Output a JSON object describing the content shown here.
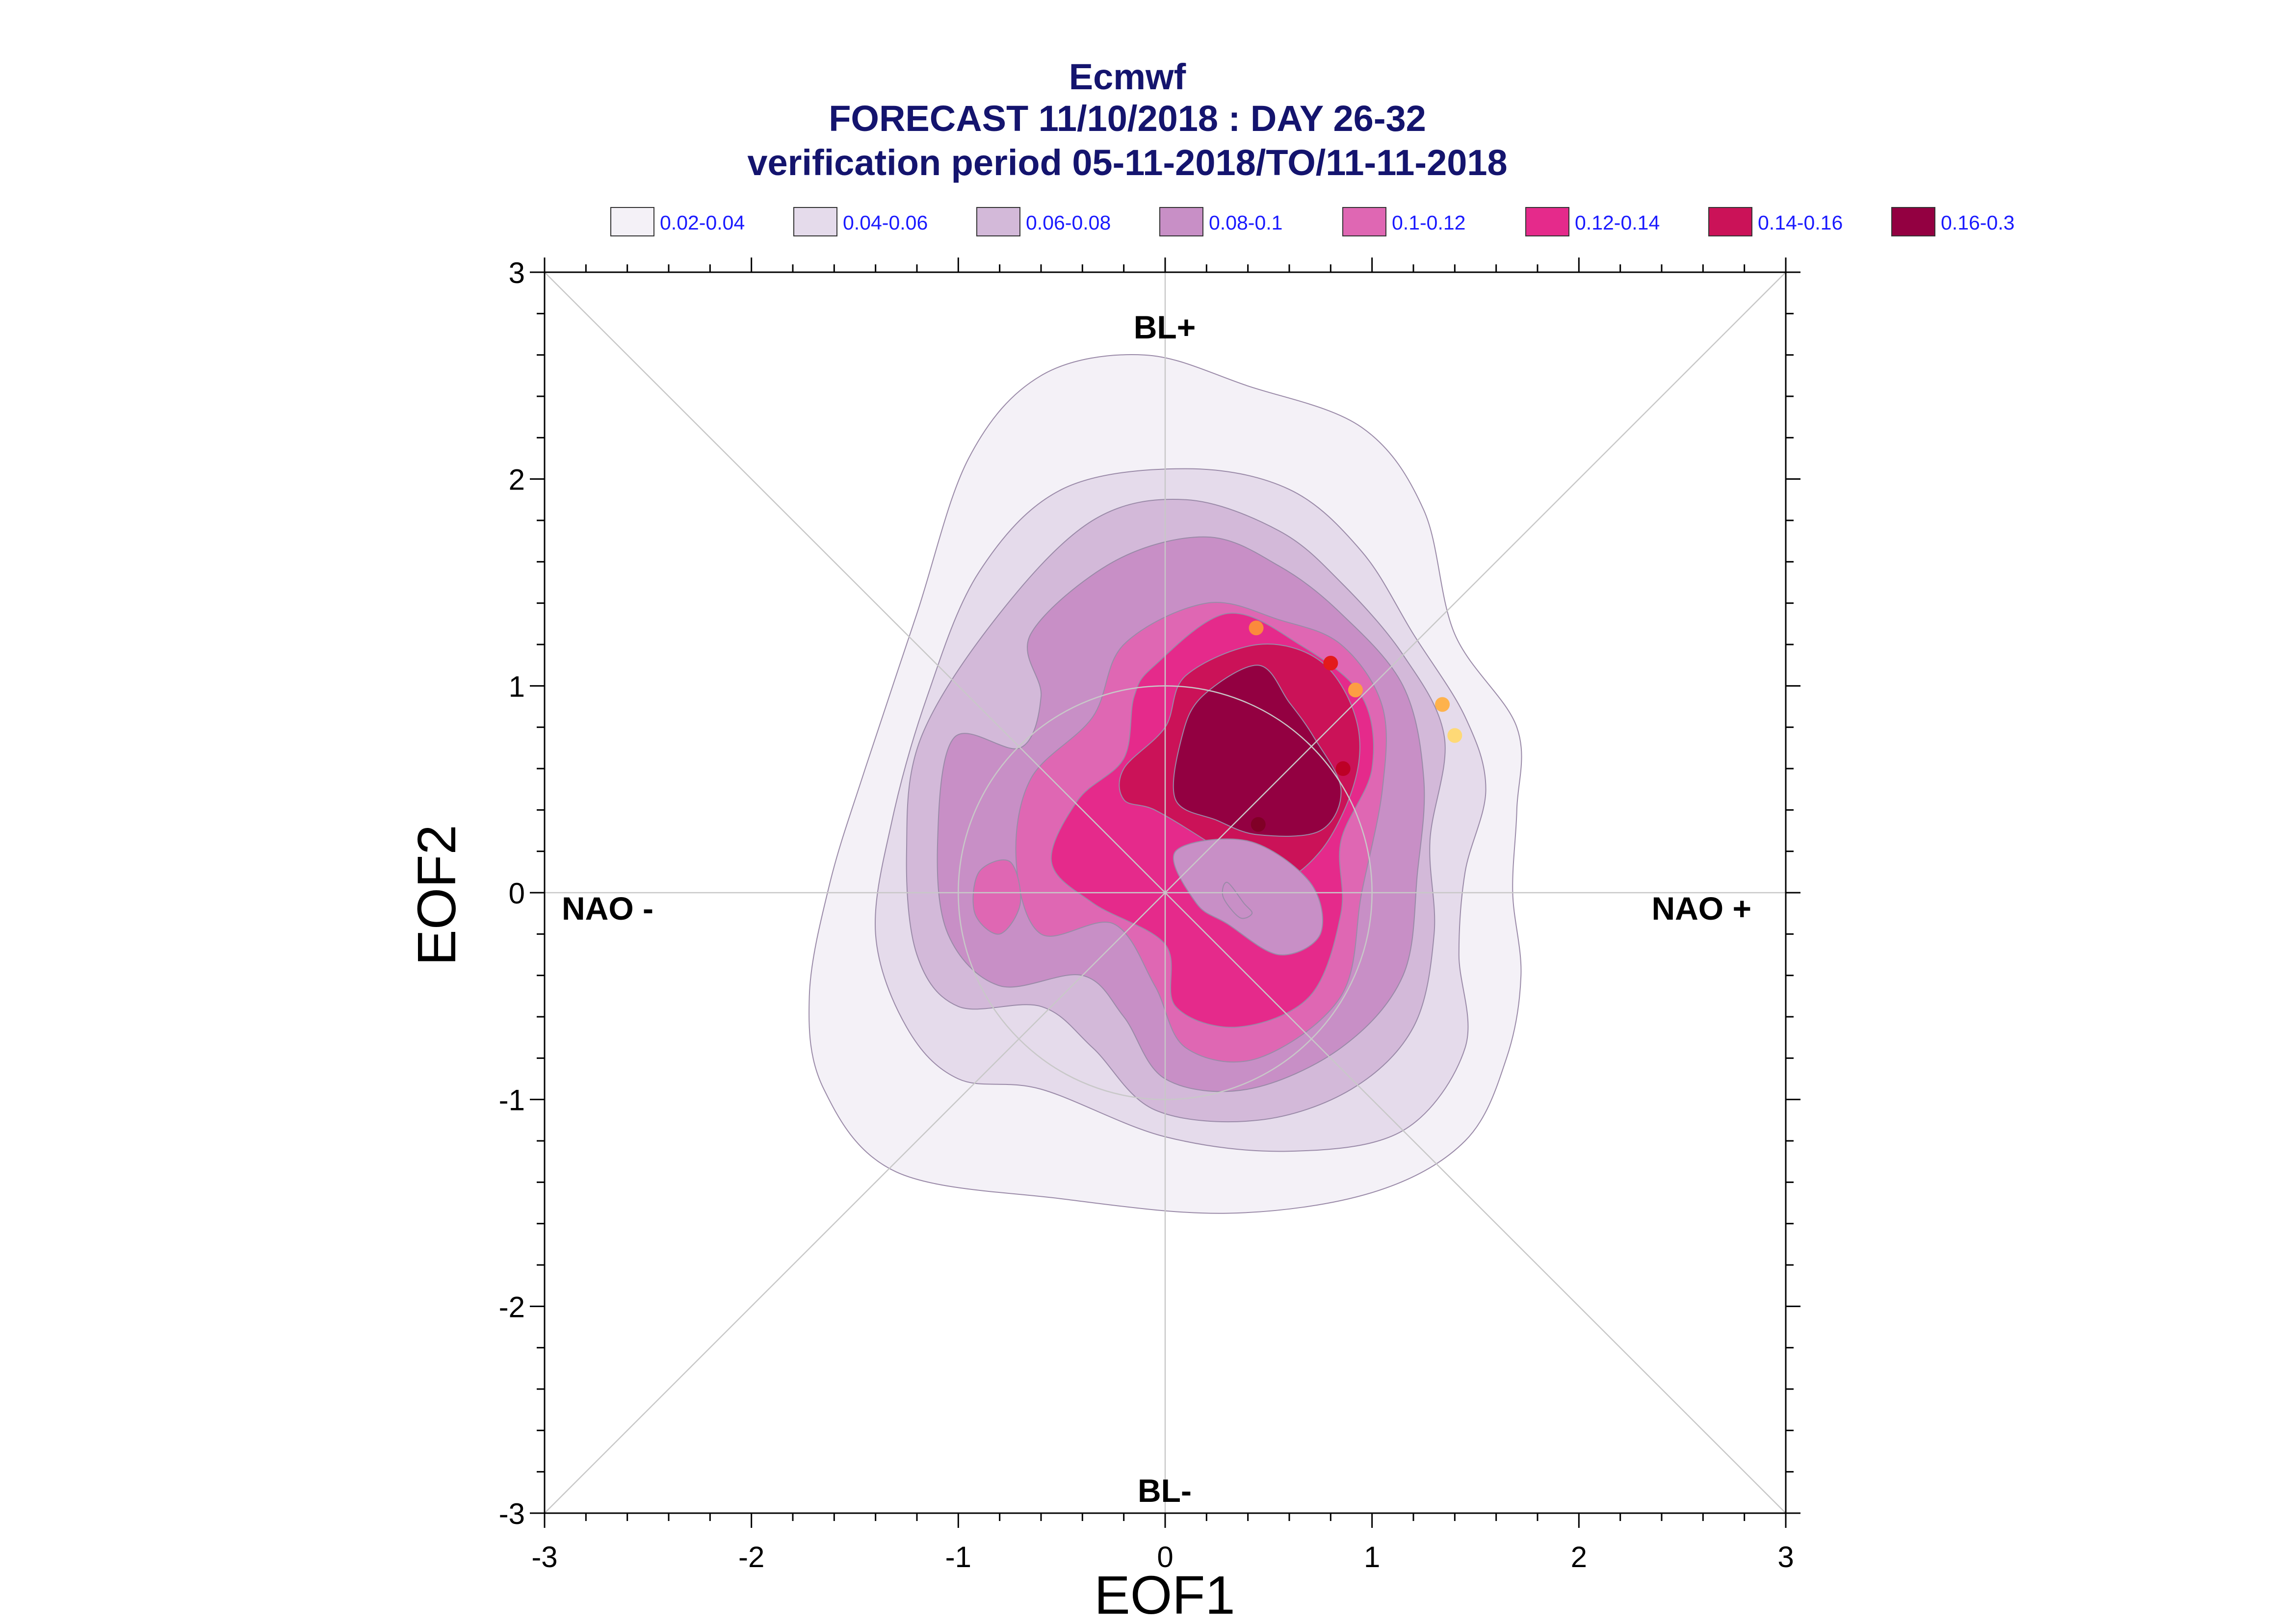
{
  "titles": {
    "line1": "Ecmwf",
    "line2": "FORECAST 11/10/2018 : DAY 26-32",
    "line3": "verification period 05-11-2018/TO/11-11-2018"
  },
  "legend": [
    {
      "label": "0.02-0.04",
      "color": "#f4f1f7"
    },
    {
      "label": "0.04-0.06",
      "color": "#e5dbeb"
    },
    {
      "label": "0.06-0.08",
      "color": "#d3b9d9"
    },
    {
      "label": "0.08-0.1",
      "color": "#c88fc6"
    },
    {
      "label": "0.1-0.12",
      "color": "#df67b3"
    },
    {
      "label": "0.12-0.14",
      "color": "#e52a8b"
    },
    {
      "label": "0.14-0.16",
      "color": "#cb1258"
    },
    {
      "label": "0.16-0.3",
      "color": "#930041"
    }
  ],
  "regions": {
    "top": "BL+",
    "bottom": "BL-",
    "left": "NAO -",
    "right": "NAO +"
  },
  "chart_data": {
    "type": "contour-density",
    "xlabel": "EOF1",
    "ylabel": "EOF2",
    "xlim": [
      -3,
      3
    ],
    "ylim": [
      -3,
      3
    ],
    "xticks": [
      "-3",
      "-2",
      "-1",
      "0",
      "1",
      "2",
      "3"
    ],
    "yticks": [
      "3",
      "2",
      "1",
      "0",
      "-1",
      "-2",
      "-3"
    ],
    "contour_levels": [
      0.02,
      0.04,
      0.06,
      0.08,
      0.1,
      0.12,
      0.14,
      0.16,
      0.3
    ],
    "contours": [
      {
        "level": "0.02-0.04",
        "color": "#f4f1f7",
        "points": [
          [
            -0.95,
            2.1
          ],
          [
            -0.6,
            2.5
          ],
          [
            -0.1,
            2.6
          ],
          [
            0.4,
            2.45
          ],
          [
            0.95,
            2.25
          ],
          [
            1.25,
            1.85
          ],
          [
            1.4,
            1.25
          ],
          [
            1.7,
            0.8
          ],
          [
            1.7,
            0.4
          ],
          [
            1.68,
            0.0
          ],
          [
            1.72,
            -0.4
          ],
          [
            1.65,
            -0.8
          ],
          [
            1.45,
            -1.2
          ],
          [
            1.0,
            -1.45
          ],
          [
            0.3,
            -1.55
          ],
          [
            -0.5,
            -1.48
          ],
          [
            -1.3,
            -1.35
          ],
          [
            -1.65,
            -0.95
          ],
          [
            -1.72,
            -0.5
          ],
          [
            -1.62,
            0.05
          ],
          [
            -1.45,
            0.6
          ],
          [
            -1.2,
            1.35
          ]
        ]
      },
      {
        "level": "0.04-0.06",
        "color": "#e5dbeb",
        "points": [
          [
            -0.9,
            1.55
          ],
          [
            -0.5,
            1.95
          ],
          [
            0.1,
            2.05
          ],
          [
            0.6,
            1.95
          ],
          [
            0.95,
            1.65
          ],
          [
            1.2,
            1.25
          ],
          [
            1.45,
            0.85
          ],
          [
            1.55,
            0.5
          ],
          [
            1.45,
            0.1
          ],
          [
            1.42,
            -0.3
          ],
          [
            1.45,
            -0.75
          ],
          [
            1.15,
            -1.15
          ],
          [
            0.6,
            -1.25
          ],
          [
            0.0,
            -1.18
          ],
          [
            -0.6,
            -0.95
          ],
          [
            -1.0,
            -0.9
          ],
          [
            -1.25,
            -0.65
          ],
          [
            -1.4,
            -0.2
          ],
          [
            -1.32,
            0.35
          ],
          [
            -1.15,
            0.95
          ]
        ]
      },
      {
        "level": "0.06-0.08",
        "color": "#d3b9d9",
        "points": [
          [
            -0.8,
            1.35
          ],
          [
            -0.35,
            1.8
          ],
          [
            0.1,
            1.9
          ],
          [
            0.55,
            1.75
          ],
          [
            0.85,
            1.5
          ],
          [
            1.15,
            1.15
          ],
          [
            1.35,
            0.75
          ],
          [
            1.28,
            0.25
          ],
          [
            1.3,
            -0.2
          ],
          [
            1.2,
            -0.65
          ],
          [
            0.9,
            -0.95
          ],
          [
            0.45,
            -1.1
          ],
          [
            -0.05,
            -1.05
          ],
          [
            -0.35,
            -0.75
          ],
          [
            -0.6,
            -0.55
          ],
          [
            -1.0,
            -0.55
          ],
          [
            -1.2,
            -0.3
          ],
          [
            -1.25,
            0.2
          ],
          [
            -1.18,
            0.75
          ]
        ]
      },
      {
        "level": "0.08-0.1",
        "color": "#c88fc6",
        "points": [
          [
            -0.65,
            1.25
          ],
          [
            -0.25,
            1.6
          ],
          [
            0.2,
            1.72
          ],
          [
            0.55,
            1.58
          ],
          [
            0.85,
            1.35
          ],
          [
            1.15,
            1.0
          ],
          [
            1.25,
            0.55
          ],
          [
            1.22,
            0.1
          ],
          [
            1.15,
            -0.4
          ],
          [
            0.85,
            -0.75
          ],
          [
            0.4,
            -0.95
          ],
          [
            0.0,
            -0.9
          ],
          [
            -0.2,
            -0.6
          ],
          [
            -0.4,
            -0.4
          ],
          [
            -0.8,
            -0.45
          ],
          [
            -1.05,
            -0.2
          ],
          [
            -1.1,
            0.25
          ],
          [
            -1.02,
            0.75
          ],
          [
            -0.7,
            0.7
          ],
          [
            -0.6,
            0.95
          ]
        ]
      },
      {
        "level": "0.1-0.12",
        "color": "#df67b3",
        "points": [
          [
            -0.2,
            1.2
          ],
          [
            0.2,
            1.4
          ],
          [
            0.55,
            1.32
          ],
          [
            0.85,
            1.2
          ],
          [
            1.05,
            0.9
          ],
          [
            1.05,
            0.5
          ],
          [
            0.95,
            0.0
          ],
          [
            0.85,
            -0.5
          ],
          [
            0.45,
            -0.8
          ],
          [
            0.1,
            -0.75
          ],
          [
            -0.05,
            -0.45
          ],
          [
            -0.25,
            -0.15
          ],
          [
            -0.6,
            -0.2
          ],
          [
            -0.72,
            0.15
          ],
          [
            -0.65,
            0.55
          ],
          [
            -0.35,
            0.85
          ]
        ]
      },
      {
        "level": "0.12-0.14",
        "color": "#e52a8b",
        "points": [
          [
            -0.05,
            1.1
          ],
          [
            0.3,
            1.35
          ],
          [
            0.65,
            1.2
          ],
          [
            0.95,
            0.95
          ],
          [
            1.0,
            0.6
          ],
          [
            0.85,
            0.25
          ],
          [
            0.85,
            -0.1
          ],
          [
            0.7,
            -0.5
          ],
          [
            0.35,
            -0.65
          ],
          [
            0.05,
            -0.55
          ],
          [
            0.0,
            -0.25
          ],
          [
            -0.35,
            -0.05
          ],
          [
            -0.55,
            0.15
          ],
          [
            -0.42,
            0.45
          ],
          [
            -0.2,
            0.65
          ],
          [
            -0.15,
            0.95
          ]
        ]
      },
      {
        "level": "0.14-0.16",
        "color": "#cb1258",
        "points": [
          [
            0.1,
            1.05
          ],
          [
            0.45,
            1.2
          ],
          [
            0.75,
            1.12
          ],
          [
            0.92,
            0.85
          ],
          [
            0.92,
            0.55
          ],
          [
            0.75,
            0.2
          ],
          [
            0.5,
            0.05
          ],
          [
            0.2,
            0.25
          ],
          [
            -0.05,
            0.4
          ],
          [
            -0.2,
            0.45
          ],
          [
            -0.2,
            0.6
          ],
          [
            0.0,
            0.8
          ]
        ]
      },
      {
        "level": "0.16-0.3",
        "color": "#930041",
        "points": [
          [
            0.18,
            0.95
          ],
          [
            0.45,
            1.1
          ],
          [
            0.6,
            0.92
          ],
          [
            0.72,
            0.75
          ],
          [
            0.85,
            0.5
          ],
          [
            0.75,
            0.3
          ],
          [
            0.45,
            0.28
          ],
          [
            0.25,
            0.35
          ],
          [
            0.05,
            0.45
          ],
          [
            0.08,
            0.75
          ]
        ]
      }
    ],
    "holes": [
      {
        "level": "0.08-0.1",
        "color": "#c88fc6",
        "points": [
          [
            0.05,
            0.2
          ],
          [
            0.4,
            0.25
          ],
          [
            0.7,
            0.05
          ],
          [
            0.75,
            -0.2
          ],
          [
            0.55,
            -0.3
          ],
          [
            0.3,
            -0.15
          ],
          [
            0.15,
            -0.05
          ]
        ]
      },
      {
        "level": "0.1-0.12",
        "color": "#df67b3",
        "points": [
          [
            -0.9,
            0.1
          ],
          [
            -0.75,
            0.15
          ],
          [
            -0.7,
            -0.05
          ],
          [
            -0.8,
            -0.2
          ],
          [
            -0.92,
            -0.1
          ]
        ]
      },
      {
        "level": "0.08-0.1",
        "color": "#c88fc6",
        "points": [
          [
            0.3,
            0.05
          ],
          [
            0.38,
            -0.05
          ],
          [
            0.42,
            -0.1
          ],
          [
            0.36,
            -0.12
          ],
          [
            0.28,
            -0.02
          ]
        ]
      }
    ],
    "points": [
      {
        "x": 0.44,
        "y": 1.28,
        "color": "#fb8a3c"
      },
      {
        "x": 0.8,
        "y": 1.11,
        "color": "#e31a1c"
      },
      {
        "x": 0.92,
        "y": 0.98,
        "color": "#fd9e43"
      },
      {
        "x": 1.34,
        "y": 0.91,
        "color": "#feb24c"
      },
      {
        "x": 1.4,
        "y": 0.76,
        "color": "#fed976"
      },
      {
        "x": 0.86,
        "y": 0.6,
        "color": "#bd0026"
      },
      {
        "x": 0.45,
        "y": 0.33,
        "color": "#800026"
      }
    ]
  }
}
